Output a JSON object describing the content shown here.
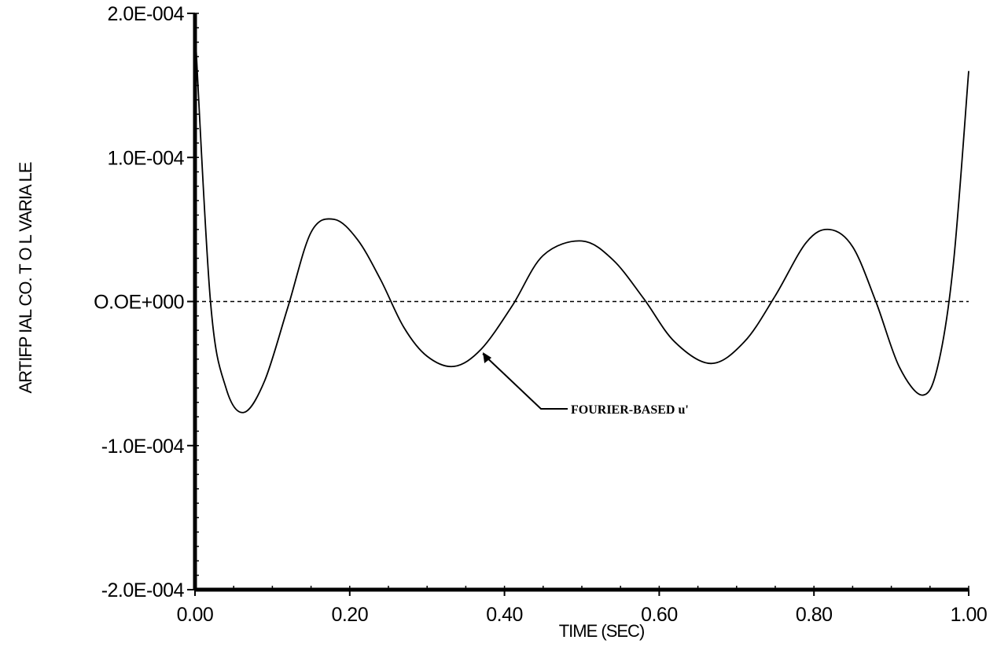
{
  "chart_data": {
    "type": "line",
    "title": "",
    "xlabel": "TIME  (SEC)",
    "ylabel": "ARTIFP IAL  CO. T O L  VARIA  LE",
    "xlim": [
      0,
      1
    ],
    "ylim": [
      -0.0002,
      0.0002
    ],
    "x_ticks": [
      0.0,
      0.2,
      0.4,
      0.6,
      0.8,
      1.0
    ],
    "x_tick_labels": [
      "0.00",
      "0.20",
      "0.40",
      "0.60",
      "0.80",
      "1.00"
    ],
    "y_ticks": [
      0.0002,
      0.0001,
      0.0,
      -0.0001,
      -0.0002
    ],
    "y_tick_labels": [
      "2.0E-004",
      "1.0E-004",
      "O.OE+000",
      "-1.0E-004",
      "-2.0E-004"
    ],
    "grid": false,
    "series": [
      {
        "name": "FOURIER-BASED u'",
        "style": "solid",
        "x": [
          0.0,
          0.02,
          0.04,
          0.063,
          0.09,
          0.12,
          0.15,
          0.18,
          0.21,
          0.24,
          0.27,
          0.3,
          0.335,
          0.37,
          0.41,
          0.45,
          0.5,
          0.54,
          0.58,
          0.62,
          0.667,
          0.71,
          0.75,
          0.79,
          0.82,
          0.85,
          0.88,
          0.91,
          0.94,
          0.96,
          0.98,
          1.0
        ],
        "y": [
          0.00019,
          0.0,
          -6e-05,
          -7.7e-05,
          -5.5e-05,
          -4e-06,
          4.8e-05,
          5.7e-05,
          4.3e-05,
          1.5e-05,
          -1.8e-05,
          -3.8e-05,
          -4.5e-05,
          -3.3e-05,
          -3e-06,
          3.2e-05,
          4.2e-05,
          2.9e-05,
          2e-06,
          -2.8e-05,
          -4.3e-05,
          -2.8e-05,
          4e-06,
          4.1e-05,
          5e-05,
          3.8e-05,
          0.0,
          -4.5e-05,
          -6.5e-05,
          -4.5e-05,
          2.5e-05,
          0.00016
        ]
      },
      {
        "name": "",
        "style": "dashed",
        "x": [
          0.0,
          1.0
        ],
        "y": [
          0.0,
          0.0
        ]
      }
    ],
    "annotations": [
      {
        "text": "FOURIER-BASED u'",
        "points_to": {
          "x": 0.37,
          "y": -3.3e-05
        }
      }
    ]
  }
}
